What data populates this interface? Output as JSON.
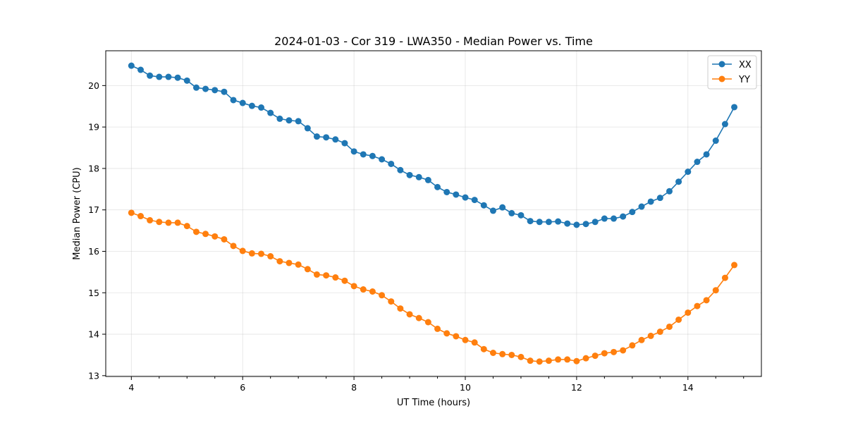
{
  "chart_data": {
    "type": "line",
    "title": "2024-01-03 - Cor 319 - LWA350 - Median Power vs. Time",
    "xlabel": "UT Time (hours)",
    "ylabel": "Median Power (CPU)",
    "xlim": [
      3.54,
      15.32
    ],
    "ylim": [
      12.98,
      20.84
    ],
    "xticks": [
      4,
      6,
      8,
      10,
      12,
      14
    ],
    "xtick_labels": [
      "4",
      "6",
      "8",
      "10",
      "12",
      "14"
    ],
    "yticks": [
      13,
      14,
      15,
      16,
      17,
      18,
      19,
      20
    ],
    "ytick_labels": [
      "13",
      "14",
      "15",
      "16",
      "17",
      "18",
      "19",
      "20"
    ],
    "grid": true,
    "legend": "top-right",
    "x": [
      4.0,
      4.167,
      4.333,
      4.5,
      4.667,
      4.833,
      5.0,
      5.167,
      5.333,
      5.5,
      5.667,
      5.833,
      6.0,
      6.167,
      6.333,
      6.5,
      6.667,
      6.833,
      7.0,
      7.167,
      7.333,
      7.5,
      7.667,
      7.833,
      8.0,
      8.167,
      8.333,
      8.5,
      8.667,
      8.833,
      9.0,
      9.167,
      9.333,
      9.5,
      9.667,
      9.833,
      10.0,
      10.167,
      10.333,
      10.5,
      10.667,
      10.833,
      11.0,
      11.167,
      11.333,
      11.5,
      11.667,
      11.833,
      12.0,
      12.167,
      12.333,
      12.5,
      12.667,
      12.833,
      13.0,
      13.167,
      13.333,
      13.5,
      13.667,
      13.833,
      14.0,
      14.167,
      14.333,
      14.5,
      14.667,
      14.833
    ],
    "series": [
      {
        "name": "XX",
        "color": "#1f77b4",
        "values": [
          20.48,
          20.38,
          20.24,
          20.21,
          20.21,
          20.19,
          20.12,
          19.95,
          19.92,
          19.89,
          19.85,
          19.65,
          19.58,
          19.51,
          19.47,
          19.34,
          19.2,
          19.16,
          19.14,
          18.97,
          18.77,
          18.75,
          18.7,
          18.61,
          18.41,
          18.34,
          18.3,
          18.22,
          18.11,
          17.96,
          17.84,
          17.79,
          17.72,
          17.55,
          17.43,
          17.37,
          17.3,
          17.24,
          17.11,
          16.98,
          17.06,
          16.92,
          16.87,
          16.73,
          16.71,
          16.71,
          16.72,
          16.67,
          16.64,
          16.66,
          16.71,
          16.79,
          16.79,
          16.84,
          16.95,
          17.08,
          17.2,
          17.29,
          17.45,
          17.68,
          17.92,
          18.16,
          18.34,
          18.67,
          19.07,
          19.48
        ]
      },
      {
        "name": "YY",
        "color": "#ff7f0e",
        "values": [
          16.93,
          16.85,
          16.75,
          16.71,
          16.69,
          16.69,
          16.61,
          16.47,
          16.42,
          16.36,
          16.29,
          16.13,
          16.01,
          15.95,
          15.94,
          15.88,
          15.76,
          15.72,
          15.68,
          15.57,
          15.44,
          15.42,
          15.37,
          15.29,
          15.16,
          15.08,
          15.03,
          14.94,
          14.79,
          14.62,
          14.48,
          14.39,
          14.29,
          14.13,
          14.02,
          13.95,
          13.86,
          13.8,
          13.64,
          13.55,
          13.52,
          13.5,
          13.45,
          13.36,
          13.34,
          13.36,
          13.39,
          13.39,
          13.35,
          13.42,
          13.48,
          13.54,
          13.57,
          13.61,
          13.73,
          13.86,
          13.96,
          14.06,
          14.18,
          14.35,
          14.52,
          14.68,
          14.82,
          15.06,
          15.36,
          15.67
        ]
      }
    ]
  }
}
